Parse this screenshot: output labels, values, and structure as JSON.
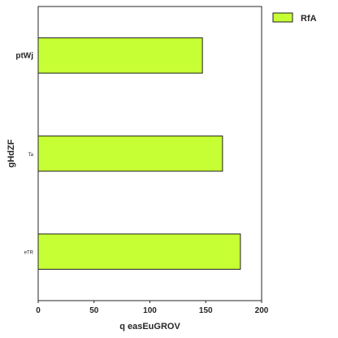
{
  "chart_data": {
    "type": "bar",
    "orientation": "horizontal",
    "categories": [
      "eTR",
      "Ta",
      "ptWj"
    ],
    "category_label_styles": [
      "small",
      "small",
      "bold"
    ],
    "series": [
      {
        "name": "RfA",
        "values": [
          181,
          165,
          147
        ],
        "color": "#c6ff33"
      }
    ],
    "xlabel": "q easEuGROV",
    "ylabel": "gHdZF",
    "xlim": [
      0,
      200
    ],
    "xticks": [
      0,
      50,
      100,
      150,
      200
    ],
    "grid": false,
    "legend": "outside-top-right",
    "bar_edge_color": "#1f1f1f"
  }
}
